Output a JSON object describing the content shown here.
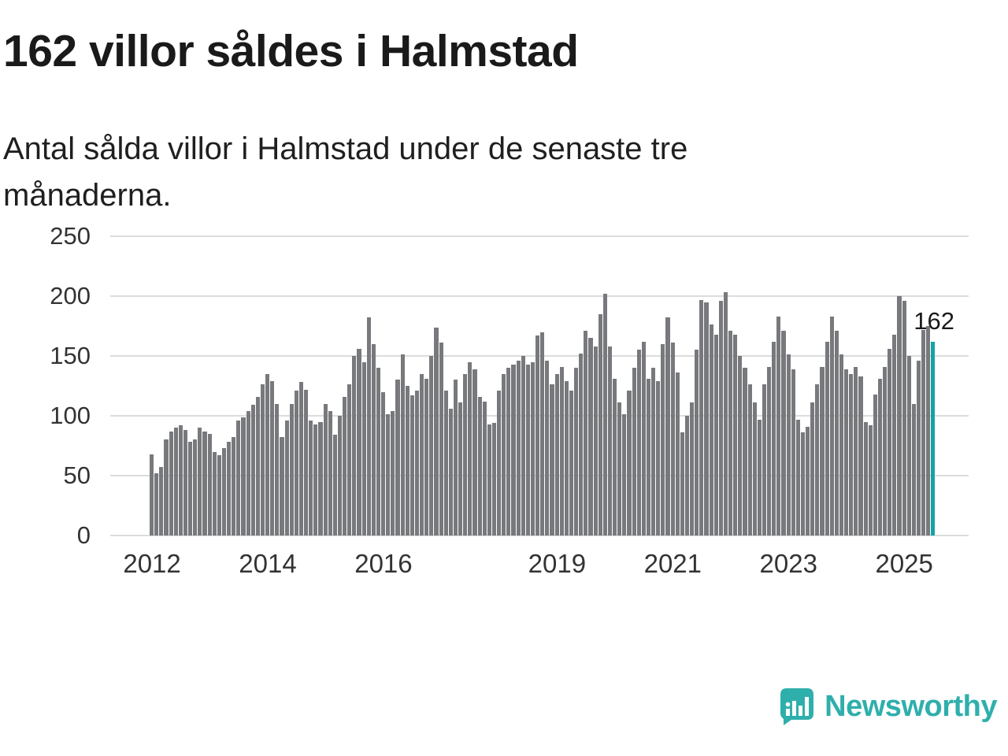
{
  "chart": {
    "title": "162 villor såldes i Halmstad",
    "subtitle": "Antal sålda villor i Halmstad under de senaste tre månaderna."
  },
  "chart_data": {
    "type": "bar",
    "title": "162 villor såldes i Halmstad",
    "subtitle": "Antal sålda villor i Halmstad under de senaste tre månaderna.",
    "xlabel": "",
    "ylabel": "",
    "ylim": [
      0,
      250
    ],
    "yticks": [
      0,
      50,
      100,
      150,
      200,
      250
    ],
    "grid": "horizontal",
    "legend": "none",
    "x_unit": "month",
    "x_start": "2012",
    "x_end": "2025",
    "xtick_labels": [
      {
        "label": "2012",
        "index": 0
      },
      {
        "label": "2014",
        "index": 24
      },
      {
        "label": "2016",
        "index": 48
      },
      {
        "label": "2019",
        "index": 84
      },
      {
        "label": "2021",
        "index": 108
      },
      {
        "label": "2023",
        "index": 132
      },
      {
        "label": "2025",
        "index": 156
      }
    ],
    "values": [
      68,
      52,
      57,
      80,
      87,
      90,
      92,
      88,
      78,
      80,
      90,
      87,
      85,
      70,
      67,
      73,
      78,
      82,
      96,
      99,
      104,
      109,
      116,
      126,
      135,
      129,
      110,
      82,
      96,
      110,
      121,
      128,
      122,
      96,
      93,
      95,
      110,
      104,
      84,
      100,
      116,
      126,
      150,
      156,
      145,
      182,
      160,
      140,
      120,
      101,
      104,
      130,
      151,
      125,
      117,
      121,
      135,
      131,
      150,
      174,
      161,
      121,
      106,
      130,
      111,
      135,
      145,
      139,
      116,
      112,
      93,
      94,
      121,
      135,
      140,
      143,
      146,
      150,
      143,
      145,
      167,
      170,
      146,
      126,
      135,
      141,
      129,
      121,
      140,
      152,
      171,
      165,
      158,
      185,
      202,
      158,
      131,
      111,
      101,
      121,
      140,
      155,
      162,
      131,
      140,
      129,
      160,
      182,
      161,
      136,
      86,
      100,
      111,
      155,
      197,
      195,
      176,
      168,
      196,
      203,
      171,
      168,
      150,
      140,
      126,
      111,
      97,
      126,
      141,
      162,
      183,
      171,
      151,
      139,
      97,
      86,
      91,
      111,
      126,
      141,
      162,
      183,
      171,
      151,
      139,
      135,
      141,
      133,
      95,
      92,
      118,
      131,
      141,
      156,
      168,
      200,
      196,
      150,
      110,
      146,
      172,
      175,
      162
    ],
    "bar_color": "#77797c",
    "highlight": {
      "index": 162,
      "value": 162,
      "label": "162",
      "color": "#16a2a4"
    }
  },
  "logo": {
    "text": "Newsworthy",
    "color": "#2fafac"
  }
}
